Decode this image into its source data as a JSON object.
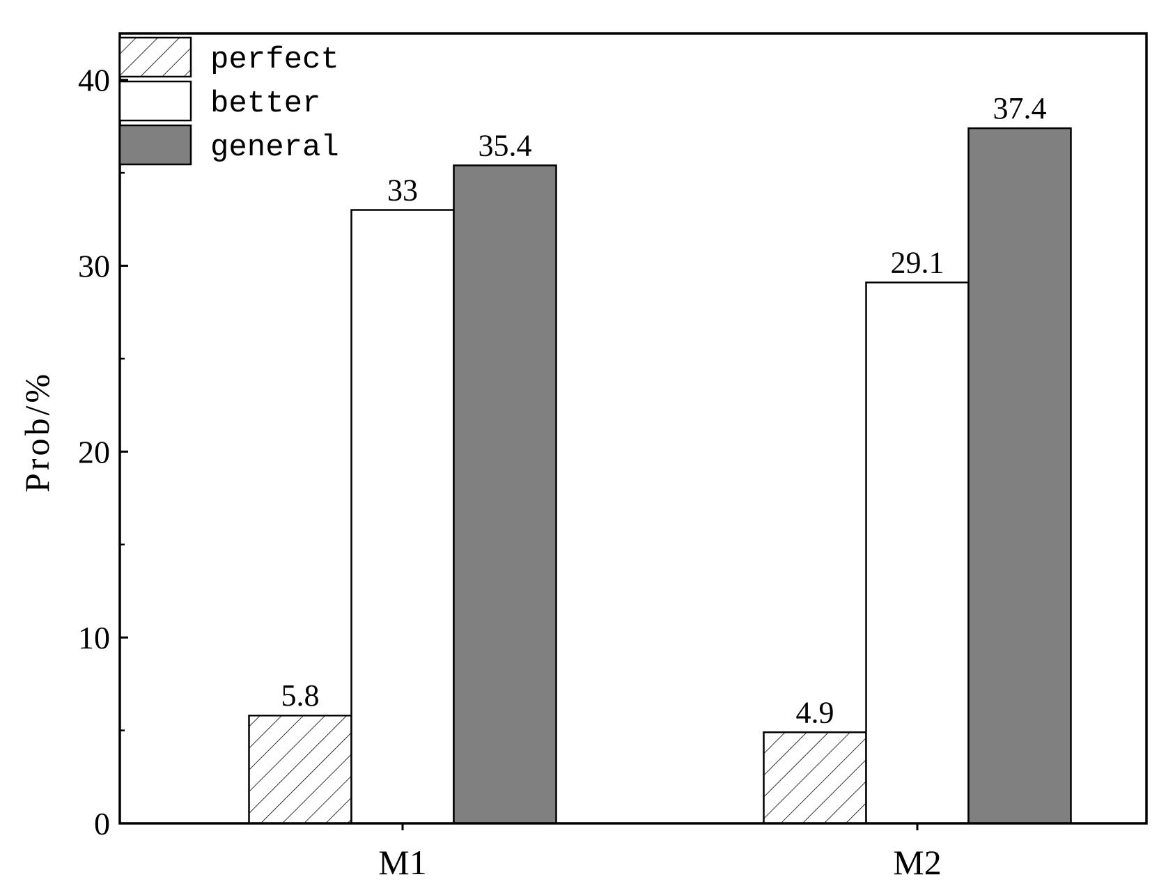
{
  "chart_data": {
    "type": "bar",
    "categories": [
      "M1",
      "M2"
    ],
    "series": [
      {
        "name": "perfect",
        "values": [
          5.8,
          4.9
        ],
        "fill": "hatch"
      },
      {
        "name": "better",
        "values": [
          33,
          29.1
        ],
        "fill": "#ffffff"
      },
      {
        "name": "general",
        "values": [
          35.4,
          37.4
        ],
        "fill": "#808080"
      }
    ],
    "data_labels": [
      [
        "5.8",
        "4.9"
      ],
      [
        "33",
        "29.1"
      ],
      [
        "35.4",
        "37.4"
      ]
    ],
    "title": "",
    "xlabel": "",
    "ylabel": "Prob/%",
    "ylim": [
      0,
      42.5
    ],
    "yticks": [
      0,
      10,
      20,
      30,
      40
    ],
    "ytick_labels": [
      "0",
      "10",
      "20",
      "30",
      "40"
    ],
    "minor_yticks": [
      5,
      15,
      25,
      35
    ],
    "grid": false,
    "legend_position": "top-left"
  },
  "colors": {
    "axis": "#000000",
    "general": "#808080",
    "better": "#ffffff"
  }
}
